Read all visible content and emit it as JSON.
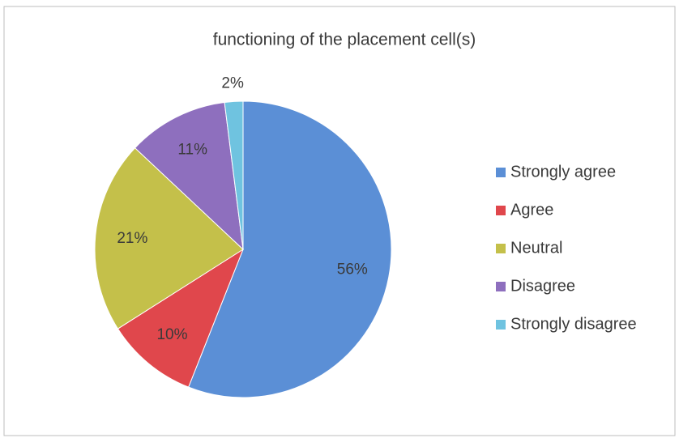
{
  "chart_data": {
    "type": "pie",
    "title": "functioning of the placement cell(s)",
    "categories": [
      "Strongly agree",
      "Agree",
      "Neutral",
      "Disagree",
      "Strongly disagree"
    ],
    "values": [
      56,
      10,
      21,
      11,
      2
    ],
    "value_labels": [
      "56%",
      "10%",
      "21%",
      "11%",
      "2%"
    ],
    "colors": [
      "#5b8fd6",
      "#e0474c",
      "#c4c04a",
      "#8e6fbe",
      "#6fc3e0"
    ],
    "legend": "right"
  }
}
